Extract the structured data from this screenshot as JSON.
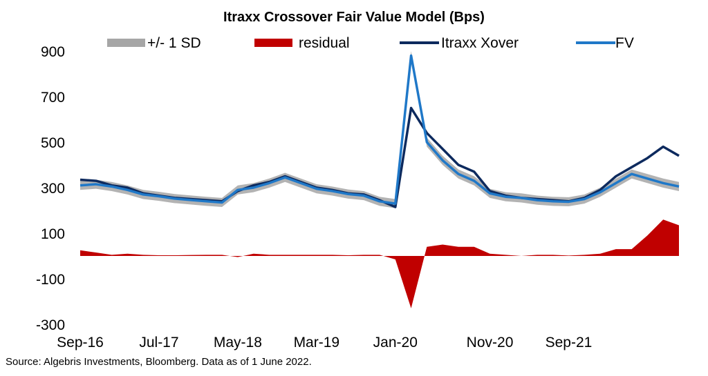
{
  "source_note": "Source: Algebris Investments, Bloomberg. Data as of 1 June 2022.",
  "chart_data": {
    "type": "line",
    "title": "Itraxx Crossover Fair Value Model (Bps)",
    "xlabel": "",
    "ylabel": "",
    "ylim": [
      -300,
      900
    ],
    "yticks": [
      900,
      700,
      500,
      300,
      100,
      -100,
      -300
    ],
    "xticks": [
      "Sep-16",
      "Jul-17",
      "May-18",
      "Mar-19",
      "Jan-20",
      "Nov-20",
      "Sep-21"
    ],
    "legend_position": "top",
    "legend": [
      "+/- 1 SD",
      "residual",
      "Itraxx Xover",
      "FV"
    ],
    "colors": {
      "band": "#a6a6a6",
      "residual": "#c00000",
      "xover": "#0d2a5e",
      "fv": "#1f78c8"
    },
    "x": [
      "Sep-16",
      "Nov-16",
      "Jan-17",
      "Mar-17",
      "May-17",
      "Jul-17",
      "Sep-17",
      "Nov-17",
      "Jan-18",
      "Mar-18",
      "May-18",
      "Jul-18",
      "Sep-18",
      "Nov-18",
      "Jan-19",
      "Mar-19",
      "May-19",
      "Jul-19",
      "Sep-19",
      "Nov-19",
      "Jan-20",
      "Mar-20",
      "Apr-20",
      "May-20",
      "Jul-20",
      "Sep-20",
      "Nov-20",
      "Jan-21",
      "Mar-21",
      "May-21",
      "Jul-21",
      "Sep-21",
      "Nov-21",
      "Jan-22",
      "Feb-22",
      "Mar-22",
      "Apr-22",
      "May-22",
      "Jun-22"
    ],
    "series": [
      {
        "name": "Itraxx Xover",
        "values": [
          335,
          330,
          310,
          300,
          275,
          265,
          255,
          250,
          245,
          240,
          285,
          310,
          325,
          350,
          325,
          300,
          290,
          275,
          270,
          245,
          215,
          650,
          540,
          470,
          400,
          370,
          285,
          265,
          255,
          250,
          245,
          240,
          255,
          290,
          350,
          390,
          430,
          480,
          440
        ]
      },
      {
        "name": "FV",
        "values": [
          310,
          315,
          305,
          290,
          270,
          262,
          252,
          246,
          240,
          235,
          290,
          300,
          320,
          345,
          320,
          295,
          285,
          272,
          265,
          240,
          230,
          880,
          500,
          420,
          360,
          330,
          275,
          260,
          255,
          245,
          240,
          238,
          250,
          280,
          320,
          360,
          340,
          320,
          305
        ]
      },
      {
        "name": "residual",
        "values": [
          25,
          15,
          5,
          10,
          5,
          3,
          3,
          4,
          5,
          5,
          -5,
          10,
          5,
          5,
          5,
          5,
          5,
          3,
          5,
          5,
          -15,
          -230,
          40,
          50,
          40,
          40,
          10,
          5,
          0,
          5,
          5,
          2,
          5,
          10,
          30,
          30,
          90,
          160,
          135
        ]
      },
      {
        "name": "+/- 1 SD",
        "values": [
          20,
          20,
          20,
          20,
          20,
          20,
          20,
          20,
          20,
          20,
          20,
          20,
          20,
          20,
          20,
          20,
          20,
          20,
          20,
          20,
          20,
          20,
          20,
          20,
          20,
          20,
          20,
          20,
          20,
          20,
          20,
          20,
          20,
          20,
          20,
          20,
          20,
          20,
          20
        ]
      }
    ]
  }
}
